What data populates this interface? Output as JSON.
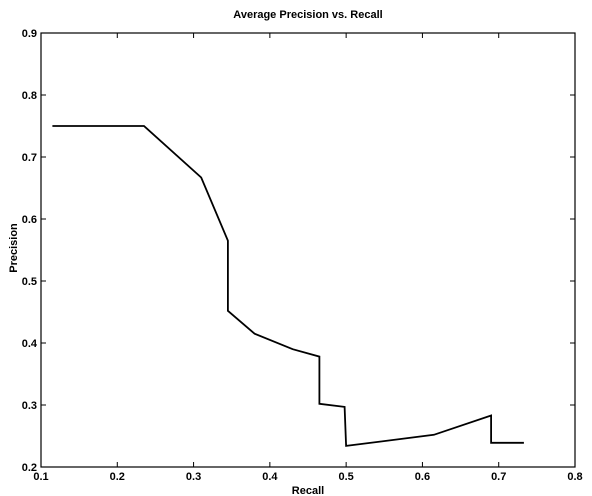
{
  "chart_data": {
    "type": "line",
    "title": "Average Precision vs. Recall",
    "xlabel": "Recall",
    "ylabel": "Precision",
    "xlim": [
      0.1,
      0.8
    ],
    "ylim": [
      0.2,
      0.9
    ],
    "xticks": [
      0.1,
      0.2,
      0.3,
      0.4,
      0.5,
      0.6,
      0.7,
      0.8
    ],
    "yticks": [
      0.2,
      0.3,
      0.4,
      0.5,
      0.6,
      0.7,
      0.8,
      0.9
    ],
    "xtick_labels": [
      "0.1",
      "0.2",
      "0.3",
      "0.4",
      "0.5",
      "0.6",
      "0.7",
      "0.8"
    ],
    "ytick_labels": [
      "0.2",
      "0.3",
      "0.4",
      "0.5",
      "0.6",
      "0.7",
      "0.8",
      "0.9"
    ],
    "grid": false,
    "series": [
      {
        "color": "#000000",
        "x": [
          0.115,
          0.2,
          0.235,
          0.31,
          0.345,
          0.345,
          0.38,
          0.43,
          0.465,
          0.465,
          0.498,
          0.5,
          0.615,
          0.69,
          0.69,
          0.733
        ],
        "y": [
          0.75,
          0.75,
          0.75,
          0.667,
          0.565,
          0.452,
          0.415,
          0.39,
          0.378,
          0.302,
          0.297,
          0.234,
          0.252,
          0.283,
          0.239,
          0.239
        ]
      }
    ]
  }
}
